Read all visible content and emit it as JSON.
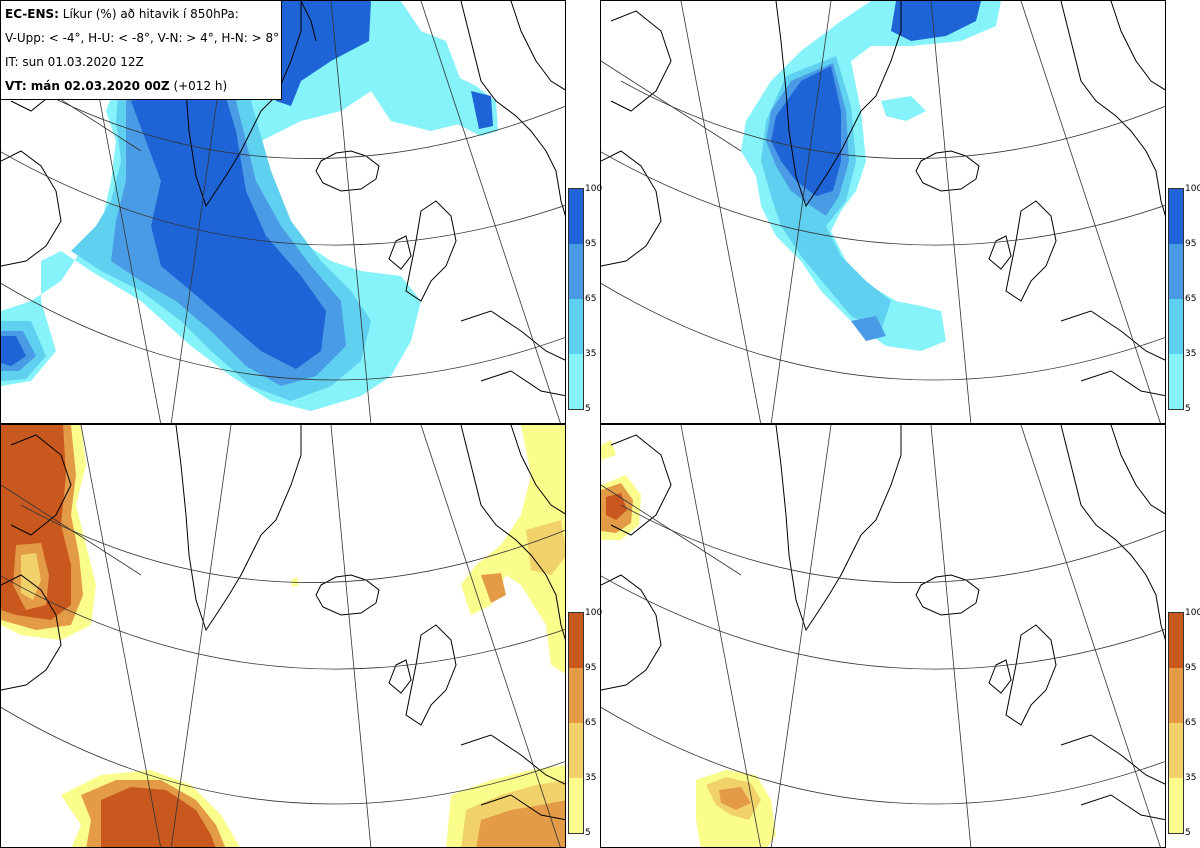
{
  "header": {
    "model_bold": "EC-ENS:",
    "title_rest": "Líkur (%) að hitavik í 850hPa:",
    "thresholds": "V-Upp: < -4°, H-U: < -8°, V-N: > 4°, H-N: > 8°",
    "init_time": "IT: sun 01.03.2020 12Z",
    "valid_bold": "VT: mán 02.03.2020 00Z",
    "valid_lead": "(+012 h)"
  },
  "panels": [
    {
      "id": "v-upp",
      "palette": "cold"
    },
    {
      "id": "h-u",
      "palette": "cold"
    },
    {
      "id": "v-n",
      "palette": "warm"
    },
    {
      "id": "h-n",
      "palette": "warm"
    }
  ],
  "colorbar": {
    "ticks": [
      "100",
      "95",
      "65",
      "35",
      "5"
    ],
    "cold_colors": [
      "#1e64d6",
      "#4a9be6",
      "#5fd0ef",
      "#86f2fa"
    ],
    "warm_colors": [
      "#c8581e",
      "#e39b48",
      "#f1d26a",
      "#fafc8c"
    ]
  },
  "colors": {
    "coast": "#000000",
    "grid": "#333333",
    "cold_high": "#1e64d6",
    "cold_mid": "#4a9be6",
    "cold_low": "#86f2fa",
    "warm_high": "#c8581e",
    "warm_mid": "#e39b48",
    "warm_low": "#fafc8c"
  }
}
